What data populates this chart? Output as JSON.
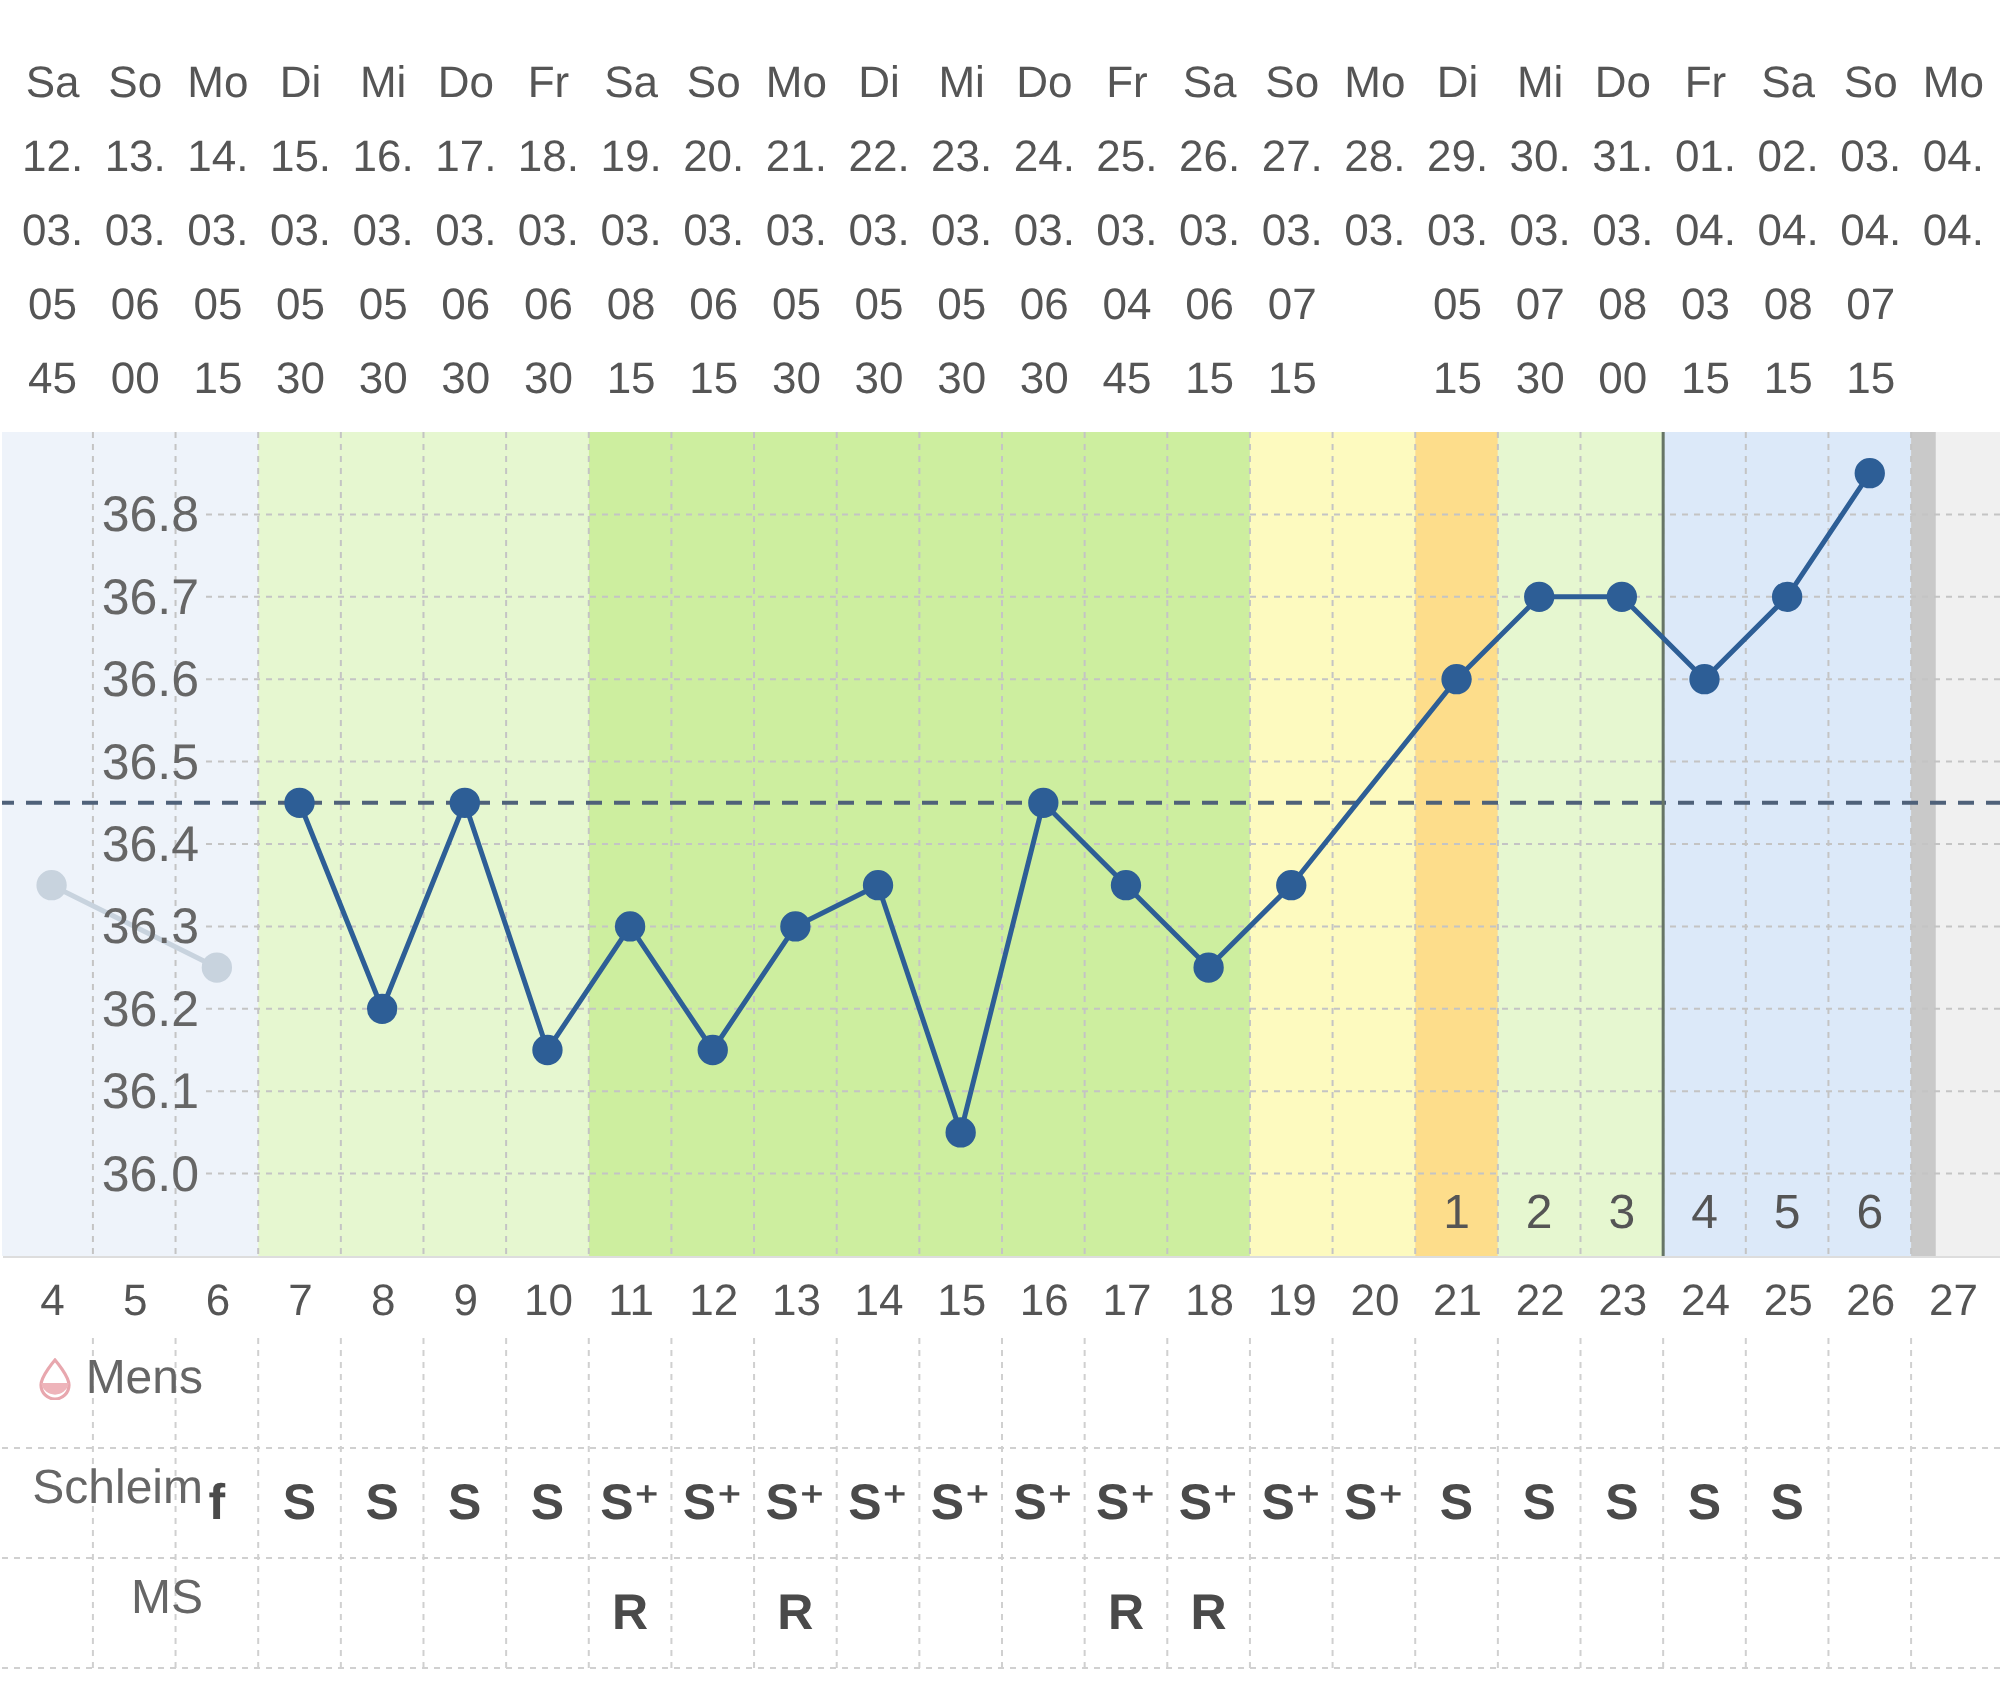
{
  "chart_data": [
    {
      "type": "line",
      "xlim": [
        3.4,
        27.6
      ],
      "xticks": [
        4,
        5,
        6,
        7,
        8,
        9,
        10,
        11,
        12,
        13,
        14,
        15,
        16,
        17,
        18,
        19,
        20,
        21,
        22,
        23,
        24,
        25,
        26,
        27
      ],
      "x2lim": [
        "--03-11T09:36",
        "--04-04T14:24"
      ],
      "x2ticks": [
        {
          "value": "--03-12",
          "label": "Sa\n12.\n03.\n05\n45"
        },
        {
          "value": "--03-13",
          "label": "So\n13.\n03.\n06\n00"
        },
        {
          "value": "--03-14",
          "label": "Mo\n14.\n03.\n05\n15"
        },
        {
          "value": "--03-15",
          "label": "Di\n15.\n03.\n05\n30"
        },
        {
          "value": "--03-16",
          "label": "Mi\n16.\n03.\n05\n30"
        },
        {
          "value": "--03-17",
          "label": "Do\n17.\n03.\n06\n30"
        },
        {
          "value": "--03-18",
          "label": "Fr\n18.\n03.\n06\n30"
        },
        {
          "value": "--03-19",
          "label": "Sa\n19.\n03.\n08\n15"
        },
        {
          "value": "--03-20",
          "label": "So\n20.\n03.\n06\n15"
        },
        {
          "value": "--03-21",
          "label": "Mo\n21.\n03.\n05\n30"
        },
        {
          "value": "--03-22",
          "label": "Di\n22.\n03.\n05\n30"
        },
        {
          "value": "--03-23",
          "label": "Mi\n23.\n03.\n05\n30"
        },
        {
          "value": "--03-24",
          "label": "Do\n24.\n03.\n06\n30"
        },
        {
          "value": "--03-25",
          "label": "Fr\n25.\n03.\n04\n45"
        },
        {
          "value": "--03-26",
          "label": "Sa\n26.\n03.\n06\n15"
        },
        {
          "value": "--03-27",
          "label": "So\n27.\n03.\n07\n15"
        },
        {
          "value": "--03-28",
          "label": "Mo\n28.\n03."
        },
        {
          "value": "--03-29",
          "label": "Di\n29.\n03.\n05\n15"
        },
        {
          "value": "--03-30",
          "label": "Mi\n30.\n03.\n07\n30"
        },
        {
          "value": "--03-31",
          "label": "Do\n31.\n03.\n08\n00"
        },
        {
          "value": "--04-01",
          "label": "Fr\n01.\n04.\n03\n15"
        },
        {
          "value": "--04-02",
          "label": "Sa\n02.\n04.\n08\n15"
        },
        {
          "value": "--04-03",
          "label": "So\n03.\n04.\n07\n15"
        },
        {
          "value": "--04-04",
          "label": "Mo\n04.\n04."
        }
      ],
      "ylim": [
        35.9,
        36.9
      ],
      "yticks": [
        {
          "value": 36,
          "label": "36.0"
        },
        36.1,
        36.2,
        36.3,
        36.4,
        36.5,
        36.6,
        36.7,
        36.8
      ],
      "grid": true,
      "marker": "circle",
      "series": [
        {
          "color": "#c8d3de",
          "x": [
            4,
            6
          ],
          "values": [
            36.35,
            36.25
          ]
        },
        {
          "color": "#2d5e96",
          "x": [
            7,
            8,
            9,
            10,
            11,
            12,
            13,
            14,
            15,
            16,
            17,
            18,
            19,
            21,
            22,
            23,
            24,
            25,
            26
          ],
          "values": [
            36.45,
            36.2,
            36.45,
            36.15,
            36.3,
            36.15,
            36.3,
            36.35,
            36.05,
            36.45,
            36.35,
            36.25,
            36.35,
            36.6,
            36.7,
            36.7,
            36.6,
            36.7,
            36.85
          ]
        }
      ],
      "ref_lines": [
        {
          "axis": "y",
          "value": 36.45,
          "color": "#4f6179",
          "line_style": "dashed"
        },
        {
          "axis": "x",
          "value": 23.5,
          "color": "#667566"
        }
      ],
      "bands": [
        {
          "axis": "x",
          "from": 3.4,
          "to": 6.5,
          "color": "#eef3fa"
        },
        {
          "axis": "x",
          "from": 6.5,
          "to": 10.5,
          "color": "#e6f7d0"
        },
        {
          "axis": "x",
          "from": 10.5,
          "to": 18.5,
          "color": "#cdee9f"
        },
        {
          "axis": "x",
          "from": 18.5,
          "to": 20.5,
          "color": "#fdfabf"
        },
        {
          "axis": "x",
          "from": 20.5,
          "to": 21.5,
          "color": "#fddd8b"
        },
        {
          "axis": "x",
          "from": 21.5,
          "to": 23.5,
          "color": "#e6f7d0"
        },
        {
          "axis": "x",
          "from": 23.5,
          "to": 26.5,
          "color": "#dce9f9"
        },
        {
          "axis": "x",
          "from": 26.5,
          "to": 26.8,
          "color": "#c9c9c9"
        },
        {
          "axis": "x",
          "from": 26.8,
          "to": 27.6,
          "color": "#f0f0f0"
        }
      ],
      "annotations": [
        "1",
        "2",
        "3",
        "4",
        "5",
        "6"
      ]
    },
    {
      "type": "heatmap",
      "categories": [
        "4",
        "5",
        "6",
        "7",
        "8",
        "9",
        "10",
        "11",
        "12",
        "13",
        "14",
        "15",
        "16",
        "17",
        "18",
        "19",
        "20",
        "21",
        "22",
        "23",
        "24",
        "25",
        "26",
        "27"
      ],
      "y_categories": [
        "Mens",
        "Schleim",
        "MS"
      ],
      "cells": [
        [
          null,
          null,
          null,
          null,
          null,
          null,
          null,
          null,
          null,
          null,
          null,
          null,
          null,
          null,
          null,
          null,
          null,
          null,
          null,
          null,
          null,
          null,
          null,
          null
        ],
        [
          null,
          null,
          null,
          null,
          null,
          null,
          null,
          null,
          null,
          null,
          null,
          null,
          null,
          null,
          null,
          null,
          null,
          null,
          null,
          null,
          null,
          null,
          null,
          null
        ],
        [
          null,
          null,
          null,
          null,
          null,
          null,
          null,
          null,
          null,
          null,
          null,
          null,
          null,
          null,
          null,
          null,
          null,
          null,
          null,
          null,
          null,
          null,
          null,
          null
        ]
      ],
      "cell_labels": [
        [
          null,
          null,
          null,
          null,
          null,
          null,
          null,
          null,
          null,
          null,
          null,
          null,
          null,
          null,
          null,
          null,
          null,
          null,
          null,
          null,
          null,
          null,
          null,
          null
        ],
        [
          null,
          null,
          "f",
          "S",
          "S",
          "S",
          "S",
          "S⁺",
          "S⁺",
          "S⁺",
          "S⁺",
          "S⁺",
          "S⁺",
          "S⁺",
          "S⁺",
          "S⁺",
          "S⁺",
          "S",
          "S",
          "S",
          "S",
          "S",
          null,
          null
        ],
        [
          null,
          null,
          null,
          null,
          null,
          null,
          null,
          "R",
          null,
          "R",
          null,
          null,
          null,
          "R",
          "R",
          null,
          null,
          null,
          null,
          null,
          null,
          null,
          null,
          null
        ]
      ],
      "grid": true,
      "tick_labels": "y"
    }
  ]
}
